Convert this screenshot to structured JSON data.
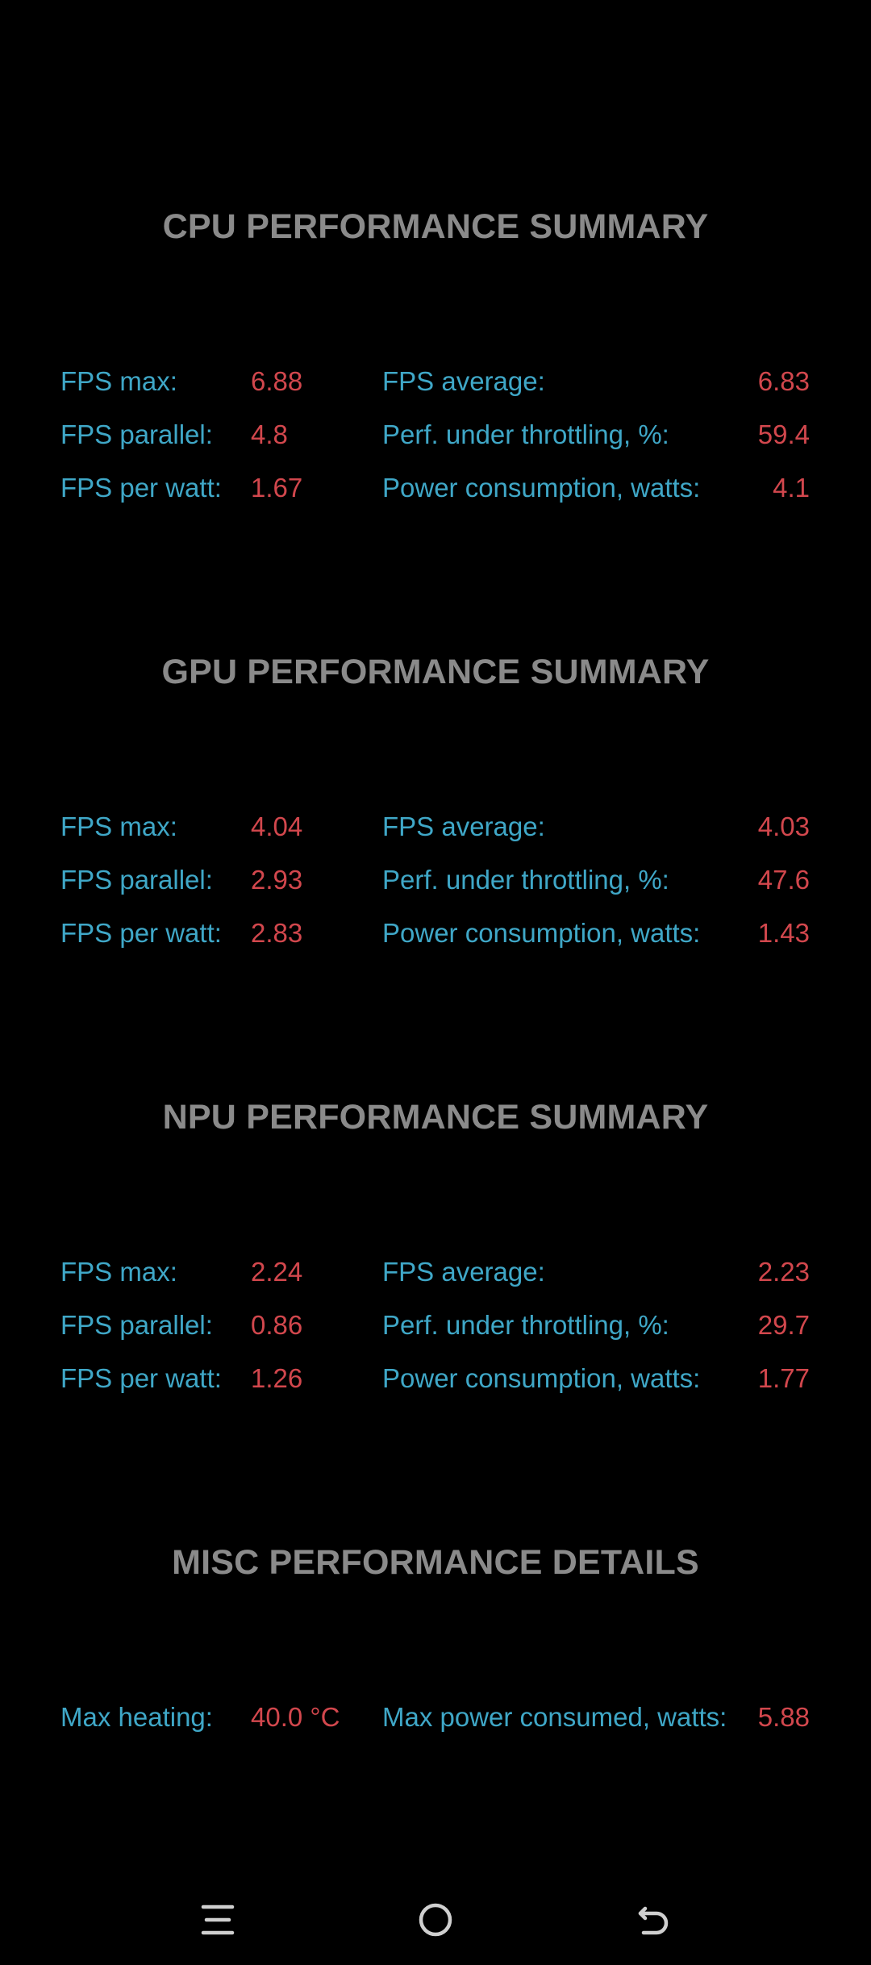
{
  "sections": {
    "cpu": {
      "title": "CPU PERFORMANCE SUMMARY",
      "rows": [
        {
          "l1": "FPS max:",
          "v1": "6.88",
          "l2": "FPS average:",
          "v2": "6.83"
        },
        {
          "l1": "FPS parallel:",
          "v1": "4.8",
          "l2": "Perf. under throttling, %:",
          "v2": "59.4"
        },
        {
          "l1": "FPS per watt:",
          "v1": "1.67",
          "l2": "Power consumption, watts:",
          "v2": "4.1"
        }
      ]
    },
    "gpu": {
      "title": "GPU PERFORMANCE SUMMARY",
      "rows": [
        {
          "l1": "FPS max:",
          "v1": "4.04",
          "l2": "FPS average:",
          "v2": "4.03"
        },
        {
          "l1": "FPS parallel:",
          "v1": "2.93",
          "l2": "Perf. under throttling, %:",
          "v2": "47.6"
        },
        {
          "l1": "FPS per watt:",
          "v1": "2.83",
          "l2": "Power consumption, watts:",
          "v2": "1.43"
        }
      ]
    },
    "npu": {
      "title": "NPU PERFORMANCE SUMMARY",
      "rows": [
        {
          "l1": "FPS max:",
          "v1": "2.24",
          "l2": "FPS average:",
          "v2": "2.23"
        },
        {
          "l1": "FPS parallel:",
          "v1": "0.86",
          "l2": "Perf. under throttling, %:",
          "v2": "29.7"
        },
        {
          "l1": "FPS per watt:",
          "v1": "1.26",
          "l2": "Power consumption, watts:",
          "v2": "1.77"
        }
      ]
    },
    "misc": {
      "title": "MISC PERFORMANCE DETAILS",
      "rows": [
        {
          "l1": "Max heating:",
          "v1": "40.0 °C",
          "l2": "Max power consumed, watts:",
          "v2": "5.88"
        }
      ]
    }
  },
  "colors": {
    "background": "#000000",
    "title": "#8a8a8a",
    "label": "#3fa7c7",
    "value": "#d2474d",
    "nav_icon": "#cfcfcf"
  },
  "navbar": {
    "icons": [
      "menu-icon",
      "home-icon",
      "back-icon"
    ]
  }
}
